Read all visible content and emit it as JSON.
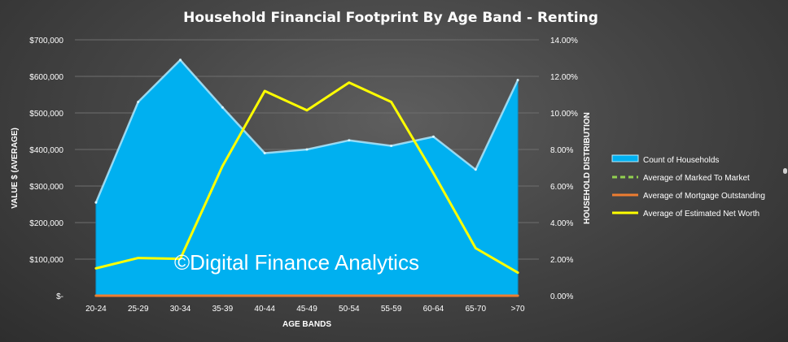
{
  "chart_data": {
    "type": "area",
    "title": "Household Financial Footprint By Age Band - Renting",
    "xlabel": "AGE BANDS",
    "ylabel_left": "VALUE $ (AVERAGE)",
    "ylabel_right": "HOUSEHOLD DISTRIBUTION",
    "categories": [
      "20-24",
      "25-29",
      "30-34",
      "35-39",
      "40-44",
      "45-49",
      "50-54",
      "55-59",
      "60-64",
      "65-70",
      ">70"
    ],
    "yticks_left": [
      "$-",
      "$100,000",
      "$200,000",
      "$300,000",
      "$400,000",
      "$500,000",
      "$600,000",
      "$700,000"
    ],
    "yticks_right": [
      "0.00%",
      "2.00%",
      "4.00%",
      "6.00%",
      "8.00%",
      "10.00%",
      "12.00%",
      "14.00%"
    ],
    "ylim_left": [
      0,
      700000
    ],
    "ylim_right": [
      0,
      14
    ],
    "grid": true,
    "legend_position": "right",
    "series": [
      {
        "name": "Count of Households",
        "type": "area",
        "axis": "right",
        "color": "#00b0f0",
        "values": [
          5.1,
          10.6,
          12.9,
          10.3,
          7.8,
          8.0,
          8.5,
          8.2,
          8.7,
          6.9,
          11.8
        ]
      },
      {
        "name": "Average of Marked To Market",
        "type": "line",
        "axis": "left",
        "color": "#92d050",
        "dashed": true,
        "values": [
          0,
          0,
          0,
          0,
          0,
          0,
          0,
          0,
          0,
          0,
          0
        ]
      },
      {
        "name": "Average of Mortgage Outstanding",
        "type": "line",
        "axis": "left",
        "color": "#ed7d31",
        "values": [
          0,
          0,
          0,
          0,
          0,
          0,
          0,
          0,
          0,
          0,
          0
        ]
      },
      {
        "name": "Average of Estimated Net Worth",
        "type": "line",
        "axis": "left",
        "color": "#ffff00",
        "values": [
          75000,
          103000,
          101000,
          355000,
          560000,
          507000,
          583000,
          530000,
          335000,
          130000,
          63000
        ]
      }
    ],
    "watermark": "©Digital Finance Analytics"
  }
}
